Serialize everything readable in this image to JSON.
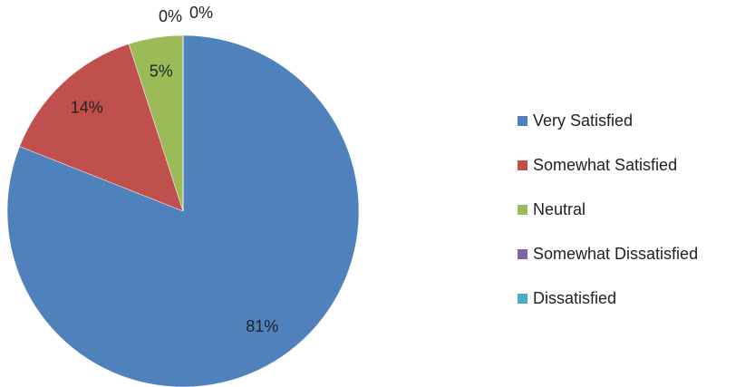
{
  "chart_data": {
    "type": "pie",
    "categories": [
      "Very Satisfied",
      "Somewhat Satisfied",
      "Neutral",
      "Somewhat Dissatisfied",
      "Dissatisfied"
    ],
    "values": [
      81,
      14,
      5,
      0,
      0
    ],
    "value_labels": [
      "81%",
      "14%",
      "5%",
      "0%",
      "0%"
    ],
    "colors": [
      "#4f81bd",
      "#c0504d",
      "#9bbb59",
      "#8064a2",
      "#4bacc6"
    ],
    "legend": "right"
  }
}
